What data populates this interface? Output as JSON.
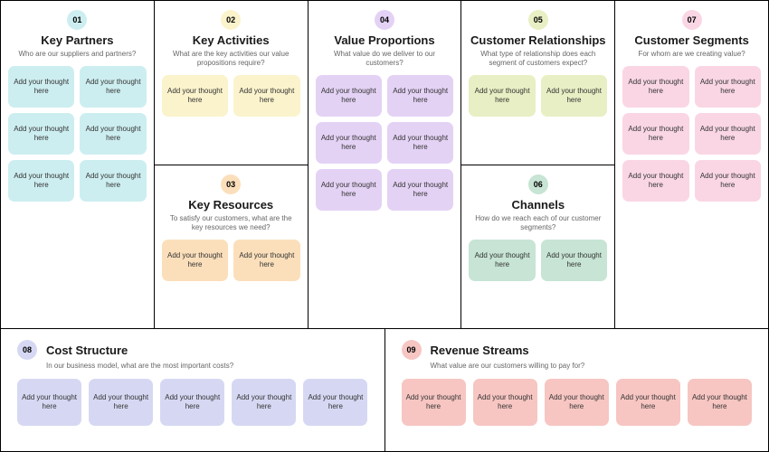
{
  "placeholder": "Add your thought here",
  "sections": {
    "partners": {
      "num": "01",
      "title": "Key Partners",
      "subtitle": "Who are our suppliers and partners?",
      "badge_bg": "#cdeef0",
      "card_bg": "#cdeef0",
      "count": 6
    },
    "activities": {
      "num": "02",
      "title": "Key Activities",
      "subtitle": "What are the key activities our value propositions require?",
      "badge_bg": "#fbf3cc",
      "card_bg": "#fbf3cc",
      "count": 2
    },
    "resources": {
      "num": "03",
      "title": "Key Resources",
      "subtitle": "To satisfy our customers, what are the key resources we need?",
      "badge_bg": "#fbdfbb",
      "card_bg": "#fbdfbb",
      "count": 2
    },
    "value": {
      "num": "04",
      "title": "Value Proportions",
      "subtitle": "What value do we deliver to our customers?",
      "badge_bg": "#e4d2f5",
      "card_bg": "#e4d2f5",
      "count": 6
    },
    "relationships": {
      "num": "05",
      "title": "Customer Relationships",
      "subtitle": "What type of relationship does each segment of customers expect?",
      "badge_bg": "#e8efc4",
      "card_bg": "#e8efc4",
      "count": 2
    },
    "channels": {
      "num": "06",
      "title": "Channels",
      "subtitle": "How do we reach each of our customer segments?",
      "badge_bg": "#c7e4d4",
      "card_bg": "#c7e4d4",
      "count": 2
    },
    "segments": {
      "num": "07",
      "title": "Customer Segments",
      "subtitle": "For whom are we creating value?",
      "badge_bg": "#fad6e4",
      "card_bg": "#fad6e4",
      "count": 6
    },
    "cost": {
      "num": "08",
      "title": "Cost Structure",
      "subtitle": "In our business model, what are the most important costs?",
      "badge_bg": "#d6d8f3",
      "card_bg": "#d6d8f3",
      "count": 5
    },
    "revenue": {
      "num": "09",
      "title": "Revenue Streams",
      "subtitle": "What value are our customers willing to pay for?",
      "badge_bg": "#f7c6c2",
      "card_bg": "#f7c6c2",
      "count": 5
    }
  }
}
